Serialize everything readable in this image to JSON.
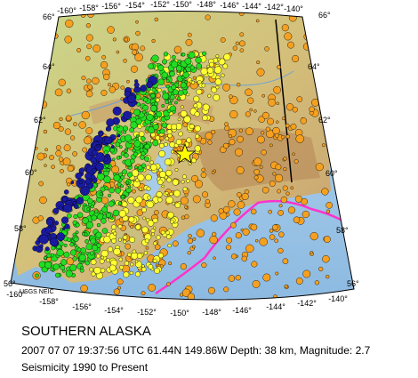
{
  "map": {
    "region": "SOUTHERN ALASKA",
    "credit": "USGS NEIC",
    "top_lon_labels": [
      "-160°",
      "-158°",
      "-156°",
      "-154°",
      "-152°",
      "-150°",
      "-148°",
      "-146°",
      "-144°",
      "-142°",
      "-140°"
    ],
    "bottom_lon_labels": [
      "-160°",
      "-158°",
      "-156°",
      "-154°",
      "-152°",
      "-150°",
      "-148°",
      "-146°",
      "-144°",
      "-142°",
      "-140°"
    ],
    "left_lat_labels": [
      "66°",
      "64°",
      "62°",
      "60°",
      "58°",
      "56°"
    ],
    "right_lat_labels": [
      "66°",
      "64°",
      "62°",
      "60°",
      "58°",
      "56°"
    ],
    "legend_colors": {
      "shallow": "#f5a020",
      "intermediate": "#ffff33",
      "deeper": "#22dd22",
      "deepest": "#1a1aa0",
      "plate_boundary": "#ff33cc",
      "event_star": "#ffff00"
    }
  },
  "caption": {
    "title": "SOUTHERN ALASKA",
    "event_line": "2007 07 07 19:37:56 UTC 61.44N 149.86W Depth: 38 km, Magnitude: 2.7",
    "period_line": "Seismicity 1990 to Present"
  }
}
